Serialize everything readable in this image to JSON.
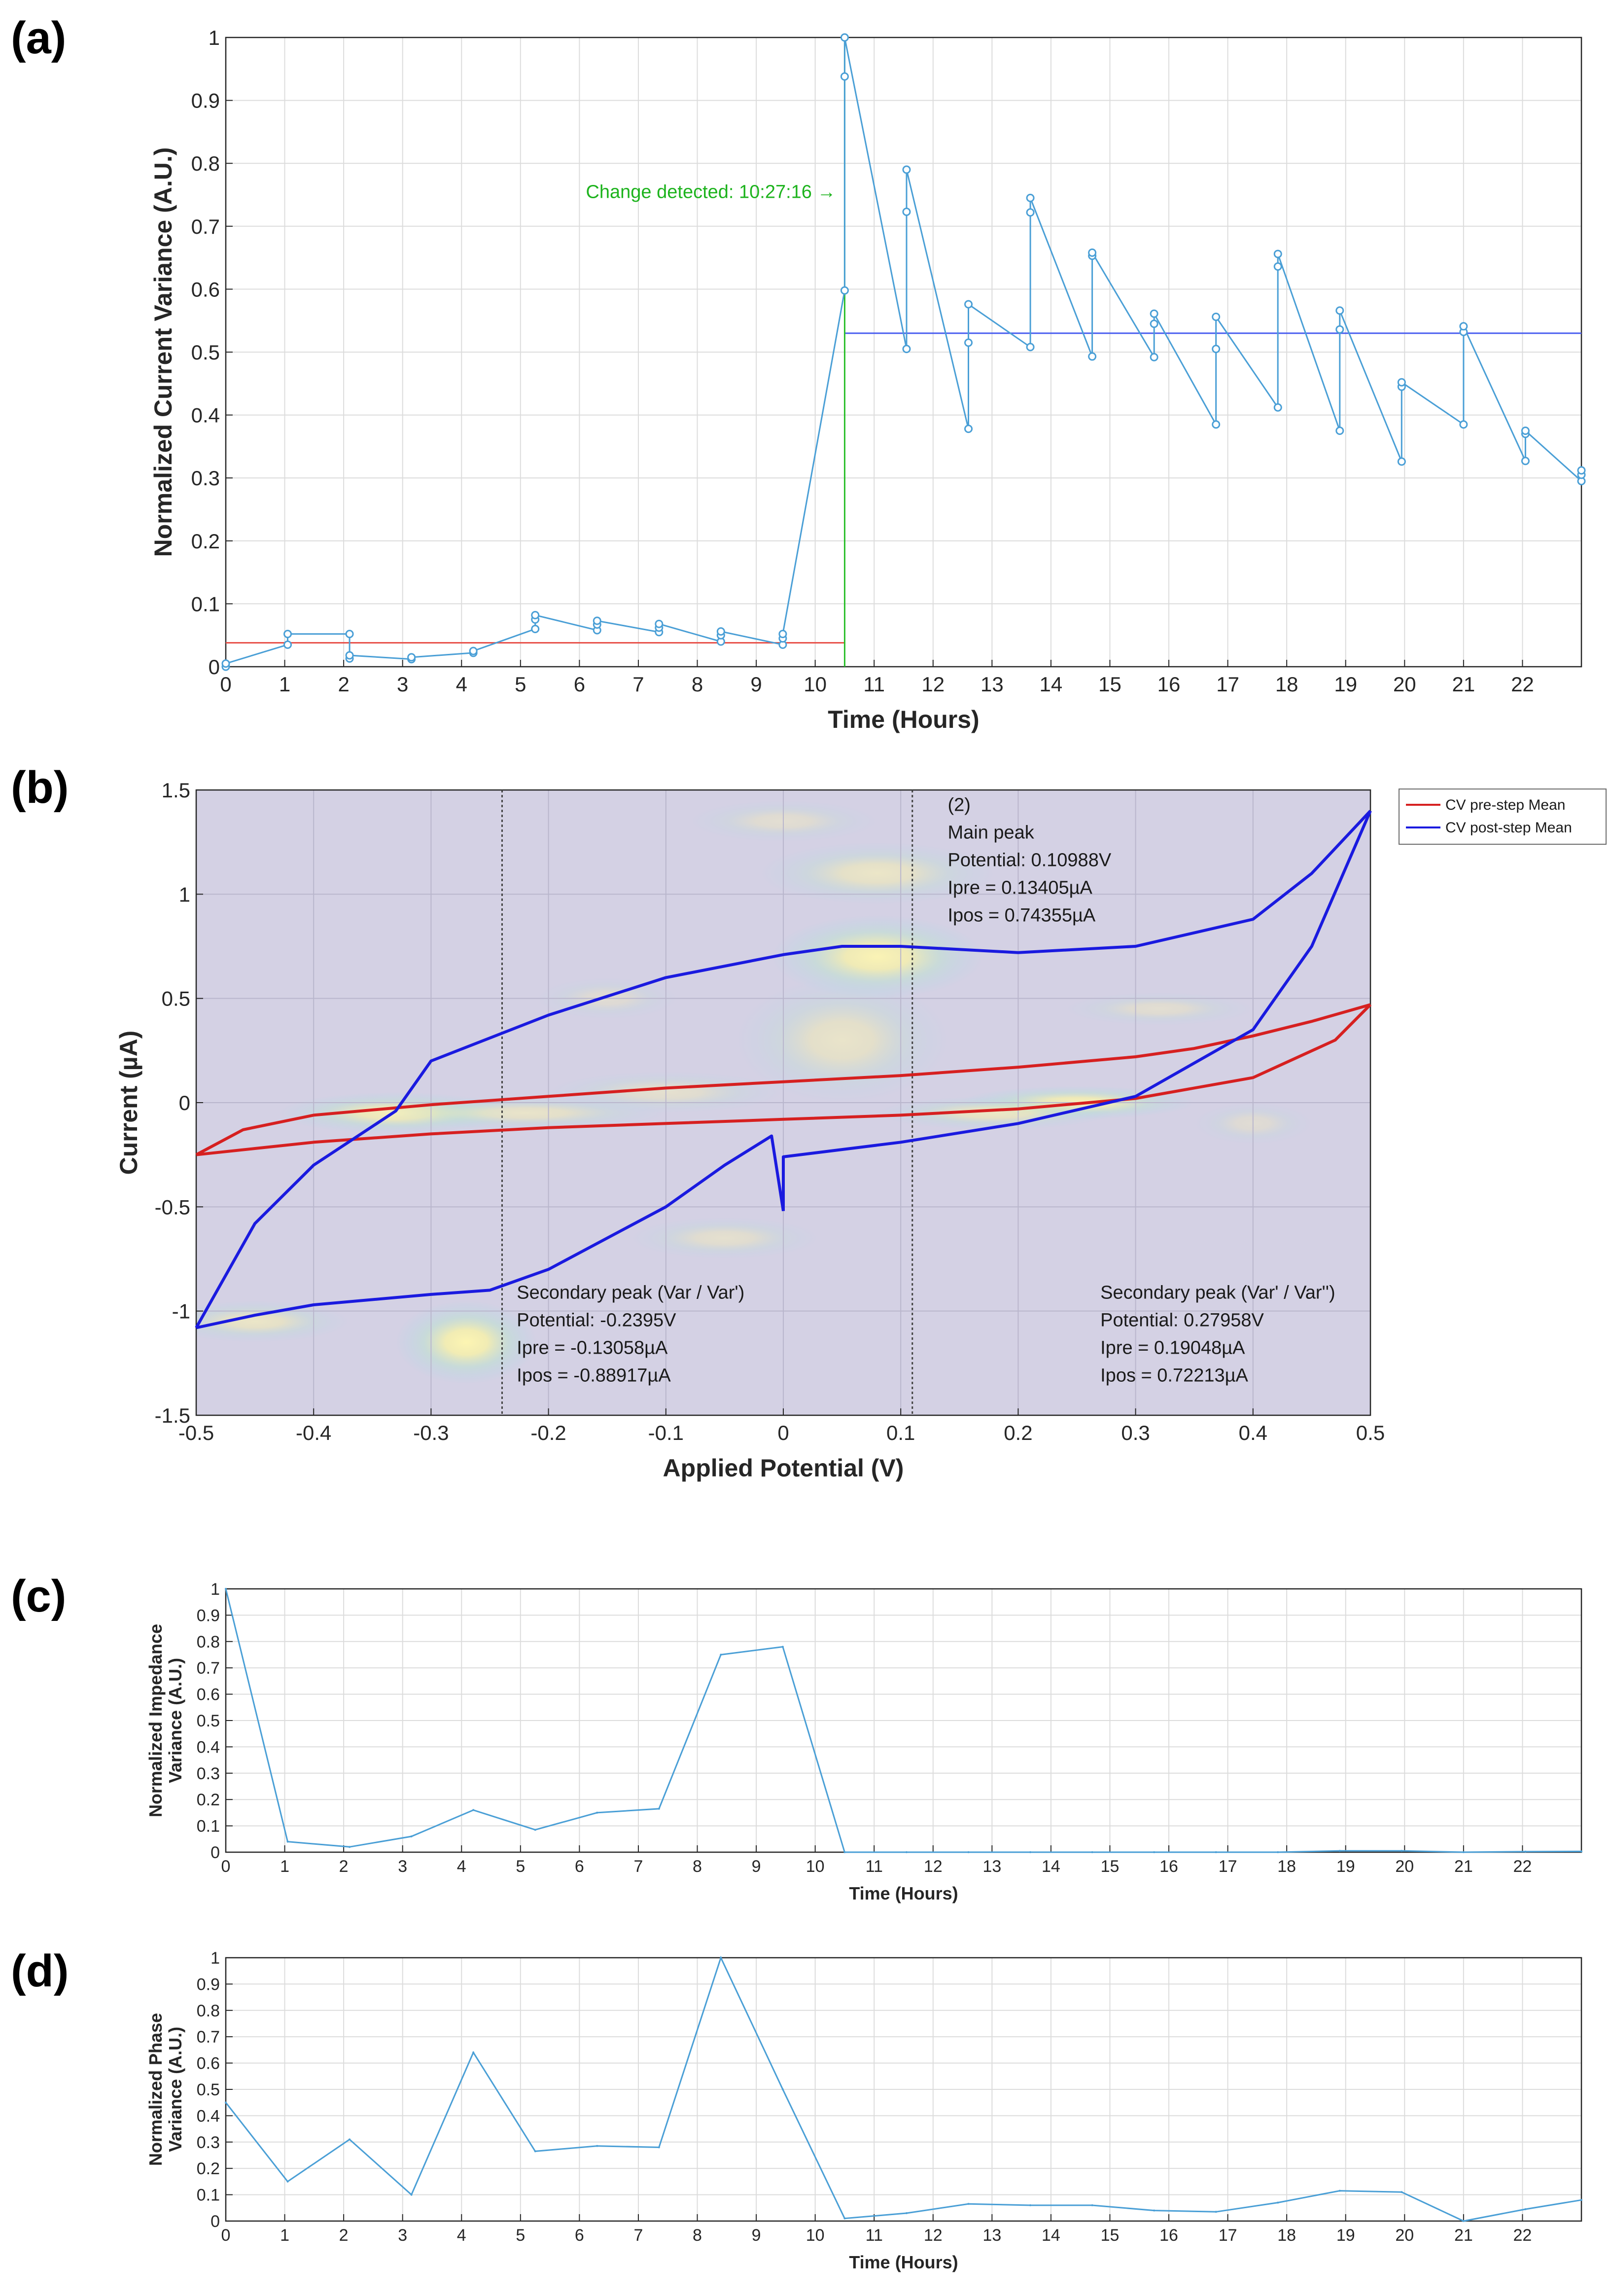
{
  "panels": {
    "a": {
      "label": "(a)"
    },
    "b": {
      "label": "(b)"
    },
    "c": {
      "label": "(c)"
    },
    "d": {
      "label": "(d)"
    }
  },
  "chart_data": [
    {
      "id": "a",
      "type": "line",
      "title": "",
      "xlabel": "Time (Hours)",
      "ylabel": "Normalized Current Variance (A.U.)",
      "xlim": [
        0,
        23
      ],
      "ylim": [
        0,
        1
      ],
      "xticks": [
        0,
        1,
        2,
        3,
        4,
        5,
        6,
        7,
        8,
        9,
        10,
        11,
        12,
        13,
        14,
        15,
        16,
        17,
        18,
        19,
        20,
        21,
        22
      ],
      "yticks": [
        0,
        0.1,
        0.2,
        0.3,
        0.4,
        0.5,
        0.6,
        0.7,
        0.8,
        0.9,
        1
      ],
      "ytick_labels": [
        "0",
        "0.1",
        "0.2",
        "0.3",
        "0.4",
        "0.5",
        "0.6",
        "0.7",
        "0.8",
        "0.9",
        "1"
      ],
      "grid": true,
      "series": [
        {
          "name": "variance",
          "color": "#4a9fd6",
          "markers": true,
          "points": [
            [
              0.0,
              0.0
            ],
            [
              0.0,
              0.005
            ],
            [
              1.05,
              0.035
            ],
            [
              1.05,
              0.052
            ],
            [
              2.1,
              0.052
            ],
            [
              2.1,
              0.013
            ],
            [
              2.1,
              0.018
            ],
            [
              3.15,
              0.012
            ],
            [
              3.15,
              0.015
            ],
            [
              4.2,
              0.022
            ],
            [
              4.2,
              0.025
            ],
            [
              5.25,
              0.06
            ],
            [
              5.25,
              0.075
            ],
            [
              5.25,
              0.082
            ],
            [
              6.3,
              0.058
            ],
            [
              6.3,
              0.067
            ],
            [
              6.3,
              0.073
            ],
            [
              7.35,
              0.055
            ],
            [
              7.35,
              0.062
            ],
            [
              7.35,
              0.068
            ],
            [
              8.4,
              0.04
            ],
            [
              8.4,
              0.05
            ],
            [
              8.4,
              0.056
            ],
            [
              9.45,
              0.035
            ],
            [
              9.45,
              0.045
            ],
            [
              9.45,
              0.052
            ],
            [
              10.5,
              0.598
            ],
            [
              10.5,
              0.938
            ],
            [
              10.5,
              1.0
            ],
            [
              11.55,
              0.505
            ],
            [
              11.55,
              0.723
            ],
            [
              11.55,
              0.79
            ],
            [
              12.6,
              0.378
            ],
            [
              12.6,
              0.515
            ],
            [
              12.6,
              0.576
            ],
            [
              13.65,
              0.508
            ],
            [
              13.65,
              0.722
            ],
            [
              13.65,
              0.745
            ],
            [
              14.7,
              0.493
            ],
            [
              14.7,
              0.653
            ],
            [
              14.7,
              0.658
            ],
            [
              15.75,
              0.492
            ],
            [
              15.75,
              0.545
            ],
            [
              15.75,
              0.561
            ],
            [
              16.8,
              0.385
            ],
            [
              16.8,
              0.505
            ],
            [
              16.8,
              0.556
            ],
            [
              17.85,
              0.412
            ],
            [
              17.85,
              0.636
            ],
            [
              17.85,
              0.656
            ],
            [
              18.9,
              0.375
            ],
            [
              18.9,
              0.536
            ],
            [
              18.9,
              0.566
            ],
            [
              19.95,
              0.326
            ],
            [
              19.95,
              0.445
            ],
            [
              19.95,
              0.452
            ],
            [
              21.0,
              0.385
            ],
            [
              21.0,
              0.532
            ],
            [
              21.0,
              0.541
            ],
            [
              22.05,
              0.327
            ],
            [
              22.05,
              0.37
            ],
            [
              22.05,
              0.375
            ],
            [
              23.0,
              0.295
            ],
            [
              23.0,
              0.305
            ],
            [
              23.0,
              0.312
            ]
          ]
        }
      ],
      "mean_lines": [
        {
          "name": "pre-step mean",
          "color": "#e8524a",
          "x0": 0,
          "x1": 10.5,
          "y": 0.038
        },
        {
          "name": "post-step mean",
          "color": "#4a5ef0",
          "x0": 10.5,
          "x1": 23,
          "y": 0.53
        }
      ],
      "change_line": {
        "x": 10.5,
        "color": "#2bbf2b"
      },
      "annotation": {
        "text": "Change detected: 10:27:16 →",
        "x": 10.35,
        "y": 0.745,
        "color": "#1db31d"
      }
    },
    {
      "id": "b",
      "type": "line",
      "xlabel": "Applied Potential (V)",
      "ylabel": "Current (µA)",
      "xlim": [
        -0.5,
        0.5
      ],
      "ylim": [
        -1.5,
        1.5
      ],
      "xticks": [
        -0.5,
        -0.4,
        -0.3,
        -0.2,
        -0.1,
        0,
        0.1,
        0.2,
        0.3,
        0.4,
        0.5
      ],
      "xtick_labels": [
        "-0.5",
        "-0.4",
        "-0.3",
        "-0.2",
        "-0.1",
        "0",
        "0.1",
        "0.2",
        "0.3",
        "0.4",
        "0.5"
      ],
      "yticks": [
        -1.5,
        -1,
        -0.5,
        0,
        0.5,
        1,
        1.5
      ],
      "ytick_labels": [
        "-1.5",
        "-1",
        "-0.5",
        "0",
        "0.5",
        "1",
        "1.5"
      ],
      "grid": true,
      "background": "#d4d1e4",
      "legend": {
        "placement": "outside-top-right",
        "entries": [
          {
            "label": "CV pre-step Mean",
            "color": "#d62020"
          },
          {
            "label": "CV post-step Mean",
            "color": "#1a1adf"
          }
        ]
      },
      "series": [
        {
          "name": "CV pre-step Mean",
          "color": "#d62020",
          "segments": [
            [
              [
                -0.5,
                -0.25
              ],
              [
                -0.45,
                -0.22
              ],
              [
                -0.4,
                -0.19
              ],
              [
                -0.3,
                -0.15
              ],
              [
                -0.2,
                -0.12
              ],
              [
                -0.1,
                -0.1
              ],
              [
                0.0,
                -0.08
              ],
              [
                0.1,
                -0.06
              ],
              [
                0.2,
                -0.03
              ],
              [
                0.3,
                0.02
              ],
              [
                0.4,
                0.12
              ],
              [
                0.47,
                0.3
              ],
              [
                0.5,
                0.47
              ]
            ],
            [
              [
                0.5,
                0.47
              ],
              [
                0.45,
                0.39
              ],
              [
                0.4,
                0.32
              ],
              [
                0.35,
                0.26
              ],
              [
                0.3,
                0.22
              ],
              [
                0.2,
                0.17
              ],
              [
                0.1,
                0.13
              ],
              [
                0.0,
                0.1
              ],
              [
                -0.1,
                0.07
              ],
              [
                -0.2,
                0.03
              ],
              [
                -0.3,
                -0.01
              ],
              [
                -0.4,
                -0.06
              ],
              [
                -0.46,
                -0.13
              ],
              [
                -0.5,
                -0.25
              ]
            ]
          ]
        },
        {
          "name": "CV post-step Mean",
          "color": "#1a1adf",
          "segments": [
            [
              [
                0.0,
                -0.52
              ],
              [
                0.0,
                -0.26
              ],
              [
                0.1,
                -0.19
              ],
              [
                0.2,
                -0.1
              ],
              [
                0.3,
                0.03
              ],
              [
                0.4,
                0.35
              ],
              [
                0.45,
                0.75
              ],
              [
                0.5,
                1.4
              ]
            ],
            [
              [
                0.5,
                1.4
              ],
              [
                0.45,
                1.1
              ],
              [
                0.4,
                0.88
              ],
              [
                0.3,
                0.75
              ],
              [
                0.2,
                0.72
              ],
              [
                0.1,
                0.75
              ],
              [
                0.05,
                0.75
              ],
              [
                0.0,
                0.71
              ],
              [
                -0.1,
                0.6
              ],
              [
                -0.2,
                0.42
              ],
              [
                -0.3,
                0.2
              ],
              [
                -0.33,
                -0.04
              ],
              [
                -0.4,
                -0.3
              ],
              [
                -0.45,
                -0.58
              ],
              [
                -0.5,
                -1.08
              ]
            ],
            [
              [
                -0.5,
                -1.08
              ],
              [
                -0.45,
                -1.02
              ],
              [
                -0.4,
                -0.97
              ],
              [
                -0.3,
                -0.92
              ],
              [
                -0.25,
                -0.9
              ],
              [
                -0.2,
                -0.8
              ],
              [
                -0.1,
                -0.5
              ],
              [
                -0.05,
                -0.3
              ],
              [
                -0.01,
                -0.16
              ],
              [
                0.0,
                -0.52
              ]
            ]
          ]
        }
      ],
      "vlines": [
        {
          "x": -0.2395
        },
        {
          "x": 0.10988
        }
      ],
      "annotations": [
        {
          "lines": [
            "(2)",
            "Main peak",
            "Potential: 0.10988V",
            "Ipre = 0.13405µA",
            "Ipos = 0.74355µA"
          ],
          "x": 0.14,
          "y": 1.4
        },
        {
          "lines": [
            "Secondary peak (Var / Var')",
            "Potential: -0.2395V",
            "Ipre = -0.13058µA",
            "Ipos = -0.88917µA"
          ],
          "x": -0.227,
          "y": -0.94
        },
        {
          "lines": [
            "Secondary peak (Var' / Var'')",
            "Potential: 0.27958V",
            "Ipre = 0.19048µA",
            "Ipos = 0.72213µA"
          ],
          "x": 0.27,
          "y": -0.94
        }
      ],
      "heatmap_blobs": [
        [
          0.08,
          0.7,
          0.09,
          0.2,
          0.9
        ],
        [
          0.08,
          1.1,
          0.1,
          0.15,
          0.55
        ],
        [
          -0.33,
          -0.05,
          0.1,
          0.1,
          0.8
        ],
        [
          -0.22,
          -0.05,
          0.12,
          0.08,
          0.5
        ],
        [
          0.25,
          0.0,
          0.1,
          0.08,
          0.85
        ],
        [
          0.18,
          -0.05,
          0.1,
          0.08,
          0.6
        ],
        [
          -0.27,
          -1.15,
          0.06,
          0.2,
          0.95
        ],
        [
          -0.45,
          -1.05,
          0.08,
          0.1,
          0.55
        ],
        [
          0.05,
          0.3,
          0.09,
          0.3,
          0.5
        ],
        [
          -0.1,
          0.05,
          0.1,
          0.1,
          0.4
        ],
        [
          -0.05,
          -0.65,
          0.08,
          0.1,
          0.4
        ],
        [
          0.32,
          0.45,
          0.08,
          0.08,
          0.35
        ],
        [
          0.0,
          1.35,
          0.08,
          0.1,
          0.35
        ],
        [
          -0.15,
          0.5,
          0.06,
          0.1,
          0.3
        ],
        [
          0.4,
          -0.1,
          0.05,
          0.1,
          0.3
        ]
      ]
    },
    {
      "id": "c",
      "type": "line",
      "xlabel": "Time (Hours)",
      "ylabel_lines": [
        "Normalized Impedance",
        "Variance (A.U.)"
      ],
      "xlim": [
        0,
        23
      ],
      "ylim": [
        0,
        1
      ],
      "xticks": [
        0,
        1,
        2,
        3,
        4,
        5,
        6,
        7,
        8,
        9,
        10,
        11,
        12,
        13,
        14,
        15,
        16,
        17,
        18,
        19,
        20,
        21,
        22
      ],
      "yticks": [
        0,
        0.1,
        0.2,
        0.3,
        0.4,
        0.5,
        0.6,
        0.7,
        0.8,
        0.9,
        1
      ],
      "ytick_labels": [
        "0",
        "0.1",
        "0.2",
        "0.3",
        "0.4",
        "0.5",
        "0.6",
        "0.7",
        "0.8",
        "0.9",
        "1"
      ],
      "grid": true,
      "series": [
        {
          "name": "impedance variance",
          "color": "#4a9fd6",
          "x": [
            0,
            1.05,
            2.1,
            3.15,
            4.2,
            5.25,
            6.3,
            7.35,
            8.4,
            9.45,
            10.5,
            11.55,
            12.6,
            13.65,
            14.7,
            15.75,
            16.8,
            17.85,
            18.9,
            19.95,
            21.0,
            22.05,
            23.0
          ],
          "values": [
            1.0,
            0.04,
            0.02,
            0.06,
            0.16,
            0.085,
            0.15,
            0.165,
            0.75,
            0.78,
            0.0,
            0.0,
            0.0,
            0.0,
            0.0,
            0.0,
            0.0,
            0.0,
            0.005,
            0.005,
            0.0,
            0.002,
            0.003
          ]
        }
      ]
    },
    {
      "id": "d",
      "type": "line",
      "xlabel": "Time (Hours)",
      "ylabel_lines": [
        "Normalized Phase",
        "Variance (A.U.)"
      ],
      "xlim": [
        0,
        23
      ],
      "ylim": [
        0,
        1
      ],
      "xticks": [
        0,
        1,
        2,
        3,
        4,
        5,
        6,
        7,
        8,
        9,
        10,
        11,
        12,
        13,
        14,
        15,
        16,
        17,
        18,
        19,
        20,
        21,
        22
      ],
      "yticks": [
        0,
        0.1,
        0.2,
        0.3,
        0.4,
        0.5,
        0.6,
        0.7,
        0.8,
        0.9,
        1
      ],
      "ytick_labels": [
        "0",
        "0.1",
        "0.2",
        "0.3",
        "0.4",
        "0.5",
        "0.6",
        "0.7",
        "0.8",
        "0.9",
        "1"
      ],
      "grid": true,
      "series": [
        {
          "name": "phase variance",
          "color": "#4a9fd6",
          "x": [
            0,
            1.05,
            2.1,
            3.15,
            4.2,
            5.25,
            6.3,
            7.35,
            8.4,
            9.45,
            10.5,
            11.55,
            12.6,
            13.65,
            14.7,
            15.75,
            16.8,
            17.85,
            18.9,
            19.95,
            21.0,
            22.05,
            23.0
          ],
          "values": [
            0.45,
            0.15,
            0.31,
            0.1,
            0.64,
            0.265,
            0.285,
            0.28,
            1.0,
            0.5,
            0.01,
            0.03,
            0.065,
            0.06,
            0.06,
            0.04,
            0.035,
            0.07,
            0.115,
            0.11,
            0.0,
            0.045,
            0.08
          ]
        }
      ]
    }
  ]
}
